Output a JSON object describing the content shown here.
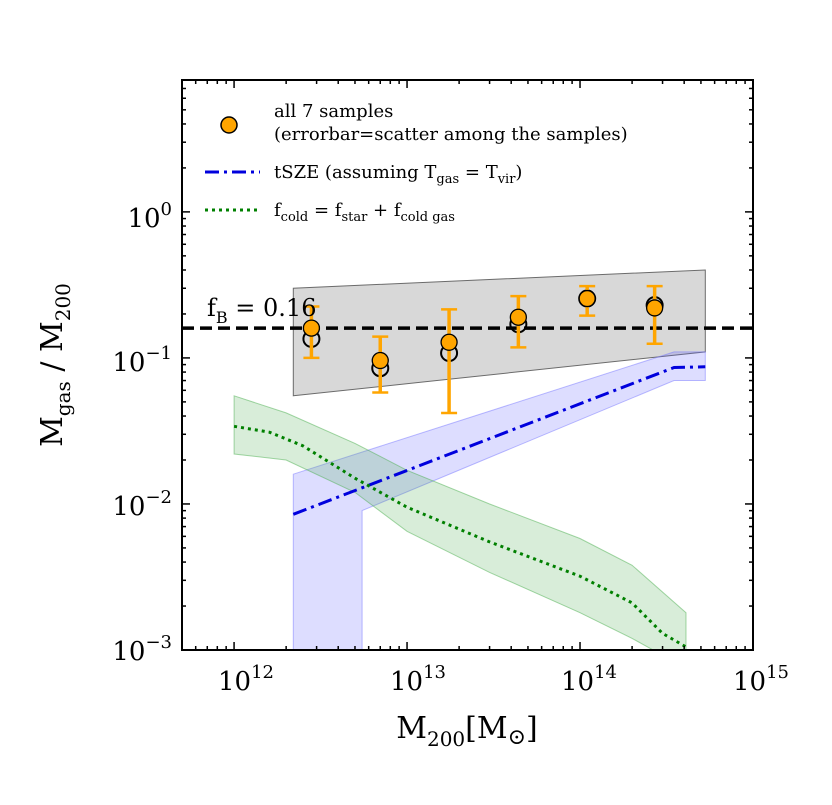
{
  "chart_data": {
    "type": "scatter",
    "title": "",
    "xlabel": {
      "main": "M",
      "sub": "200",
      "bracket_open": "[M",
      "sym": "⊙",
      "bracket_close": "]"
    },
    "ylabel": {
      "m1": "M",
      "s1": "gas",
      "mid": " / M",
      "s2": "200"
    },
    "xscale": "log",
    "yscale": "log",
    "xlim": [
      500000000000.0,
      1000000000000000.0
    ],
    "ylim": [
      0.001,
      8
    ],
    "x_ticks": [
      {
        "value": 1000000000000.0,
        "base": "10",
        "exp": "12"
      },
      {
        "value": 10000000000000.0,
        "base": "10",
        "exp": "13"
      },
      {
        "value": 100000000000000.0,
        "base": "10",
        "exp": "14"
      },
      {
        "value": 1000000000000000.0,
        "base": "10",
        "exp": "15"
      }
    ],
    "y_ticks": [
      {
        "value": 0.001,
        "base": "10",
        "exp": "−3"
      },
      {
        "value": 0.01,
        "base": "10",
        "exp": "−2"
      },
      {
        "value": 0.1,
        "base": "10",
        "exp": "−1"
      },
      {
        "value": 1,
        "base": "10",
        "exp": "0"
      }
    ],
    "baryon_fraction": {
      "value": 0.16,
      "label_main": "f",
      "label_sub": "B",
      "label_rest": " = 0.16",
      "color": "#000000"
    },
    "all_samples": {
      "name": "all 7 samples",
      "note": "(errorbar=scatter among the samples)",
      "color": "#ffa500",
      "points": [
        {
          "x": 2800000000000.0,
          "y": 0.16,
          "lo": 0.1,
          "hi": 0.225
        },
        {
          "x": 7000000000000.0,
          "y": 0.096,
          "lo": 0.058,
          "hi": 0.14
        },
        {
          "x": 17500000000000.0,
          "y": 0.128,
          "lo": 0.042,
          "hi": 0.215
        },
        {
          "x": 44000000000000.0,
          "y": 0.19,
          "lo": 0.118,
          "hi": 0.265
        },
        {
          "x": 110000000000000.0,
          "y": 0.255,
          "lo": 0.195,
          "hi": 0.31
        },
        {
          "x": 270000000000000.0,
          "y": 0.22,
          "lo": 0.125,
          "hi": 0.31
        }
      ]
    },
    "open_circles": {
      "color": "#000000",
      "points": [
        {
          "x": 2800000000000.0,
          "y": 0.135
        },
        {
          "x": 7000000000000.0,
          "y": 0.085
        },
        {
          "x": 17500000000000.0,
          "y": 0.108
        },
        {
          "x": 44000000000000.0,
          "y": 0.17
        },
        {
          "x": 110000000000000.0,
          "y": 0.255
        },
        {
          "x": 270000000000000.0,
          "y": 0.23
        }
      ]
    },
    "gray_band": {
      "color": "#9e9e9e",
      "x": [
        2200000000000.0,
        530000000000000.0
      ],
      "lower": [
        0.055,
        0.11
      ],
      "upper": [
        0.3,
        0.4
      ]
    },
    "tsze": {
      "name_pre": "tSZE (assuming T",
      "s1": "gas",
      "mid": " = T",
      "s2": "vir",
      "name_post": ")",
      "color": "#0000dd",
      "line": [
        [
          2200000000000.0,
          0.0085
        ],
        [
          350000000000000.0,
          0.086
        ],
        [
          530000000000000.0,
          0.087
        ]
      ],
      "band_upper": [
        [
          2200000000000.0,
          0.016
        ],
        [
          350000000000000.0,
          0.11
        ],
        [
          530000000000000.0,
          0.11
        ]
      ],
      "band_lower": [
        [
          2200000000000.0,
          0.001
        ],
        [
          5500000000000.0,
          0.001
        ],
        [
          5500000000000.0,
          0.009
        ],
        [
          350000000000000.0,
          0.07
        ],
        [
          530000000000000.0,
          0.07
        ]
      ]
    },
    "fcold": {
      "p1": "f",
      "s1": "cold",
      "p2": " = f",
      "s2": "star",
      "p3": " + f",
      "s3": "cold gas",
      "color": "#008000",
      "line": [
        [
          1000000000000.0,
          0.034
        ],
        [
          1600000000000.0,
          0.031
        ],
        [
          2500000000000.0,
          0.025
        ],
        [
          5000000000000.0,
          0.015
        ],
        [
          10000000000000.0,
          0.0095
        ],
        [
          30000000000000.0,
          0.0055
        ],
        [
          100000000000000.0,
          0.0032
        ],
        [
          200000000000000.0,
          0.0021
        ],
        [
          300000000000000.0,
          0.0013
        ],
        [
          410000000000000.0,
          0.00105
        ]
      ],
      "upper": [
        [
          1000000000000.0,
          0.055
        ],
        [
          2000000000000.0,
          0.042
        ],
        [
          5000000000000.0,
          0.026
        ],
        [
          10000000000000.0,
          0.017
        ],
        [
          30000000000000.0,
          0.01
        ],
        [
          100000000000000.0,
          0.0058
        ],
        [
          200000000000000.0,
          0.0038
        ],
        [
          410000000000000.0,
          0.0018
        ]
      ],
      "lower": [
        [
          1000000000000.0,
          0.022
        ],
        [
          2000000000000.0,
          0.02
        ],
        [
          5000000000000.0,
          0.012
        ],
        [
          10000000000000.0,
          0.0065
        ],
        [
          30000000000000.0,
          0.0034
        ],
        [
          100000000000000.0,
          0.0018
        ],
        [
          200000000000000.0,
          0.0012
        ],
        [
          410000000000000.0,
          0.00075
        ]
      ]
    }
  }
}
